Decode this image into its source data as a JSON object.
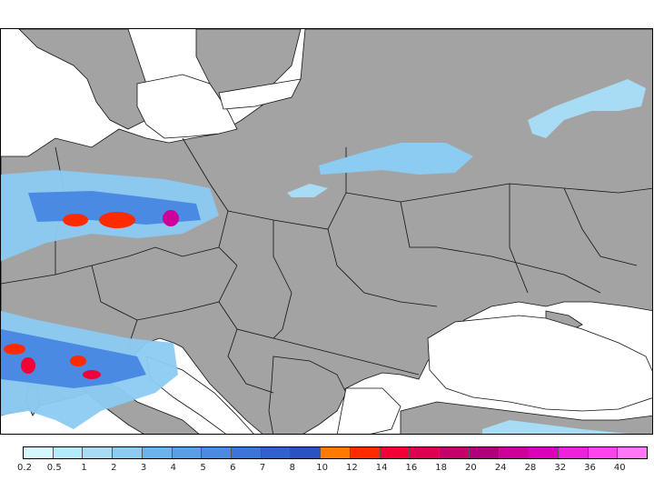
{
  "map": {
    "land_color": "#a3a3a3",
    "water_color": "#ffffff",
    "border_color": "#111111"
  },
  "legend": {
    "labels": [
      "0.2",
      "0.5",
      "1",
      "2",
      "3",
      "4",
      "5",
      "6",
      "7",
      "8",
      "10",
      "12",
      "14",
      "16",
      "18",
      "20",
      "24",
      "28",
      "32",
      "36",
      "40"
    ],
    "colors": [
      "#d6f7fb",
      "#b3ecf8",
      "#a8dcf5",
      "#8ccbf2",
      "#6cb3ee",
      "#5a9ee8",
      "#4a8ae2",
      "#3b75da",
      "#2f62cf",
      "#2a52c2",
      "#ff7a00",
      "#ff2a00",
      "#f20036",
      "#e0004f",
      "#c4006a",
      "#b0007c",
      "#cc0099",
      "#dd00bb",
      "#ee22dd",
      "#ff44ee",
      "#ff77f4"
    ]
  }
}
